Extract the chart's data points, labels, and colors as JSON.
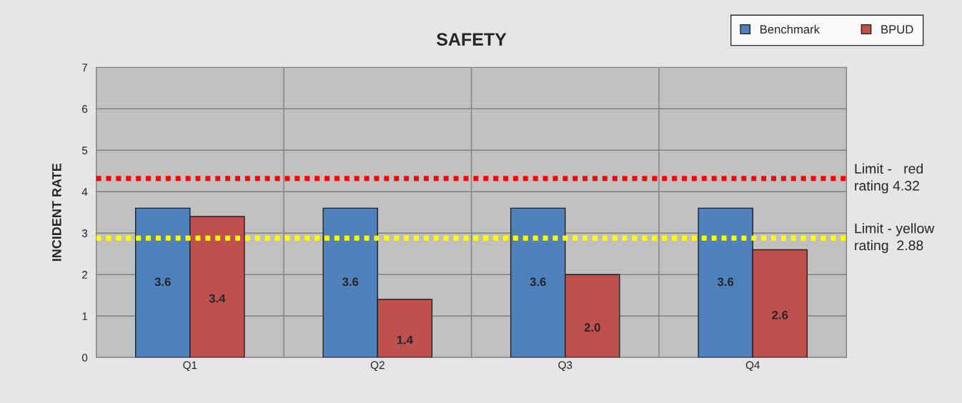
{
  "chart_data": {
    "type": "bar",
    "title": "SAFETY",
    "ylabel": "INCIDENT RATE",
    "categories": [
      "Q1",
      "Q2",
      "Q3",
      "Q4"
    ],
    "series": [
      {
        "name": "Benchmark",
        "color": "#4f81bd",
        "values": [
          3.6,
          3.6,
          3.6,
          3.6
        ],
        "value_labels": [
          "3.6",
          "3.6",
          "3.6",
          "3.6"
        ]
      },
      {
        "name": "BPUD",
        "color": "#c0504d",
        "values": [
          3.4,
          1.4,
          2.0,
          2.6
        ],
        "value_labels": [
          "3.4",
          "1.4",
          "2.0",
          "2.6"
        ]
      }
    ],
    "ylim": [
      0,
      7
    ],
    "yticks": [
      0,
      1,
      2,
      3,
      4,
      5,
      6,
      7
    ],
    "ref_lines": [
      {
        "axis": "y",
        "value": 4.32,
        "label": "Limit -   red\nrating 4.32",
        "color": "#ff0000",
        "line_style": "dotted"
      },
      {
        "axis": "y",
        "value": 2.88,
        "label": "Limit - yellow\nrating  2.88",
        "color": "#ffff00",
        "line_style": "dotted"
      }
    ],
    "grid": true,
    "legend": "top right"
  }
}
